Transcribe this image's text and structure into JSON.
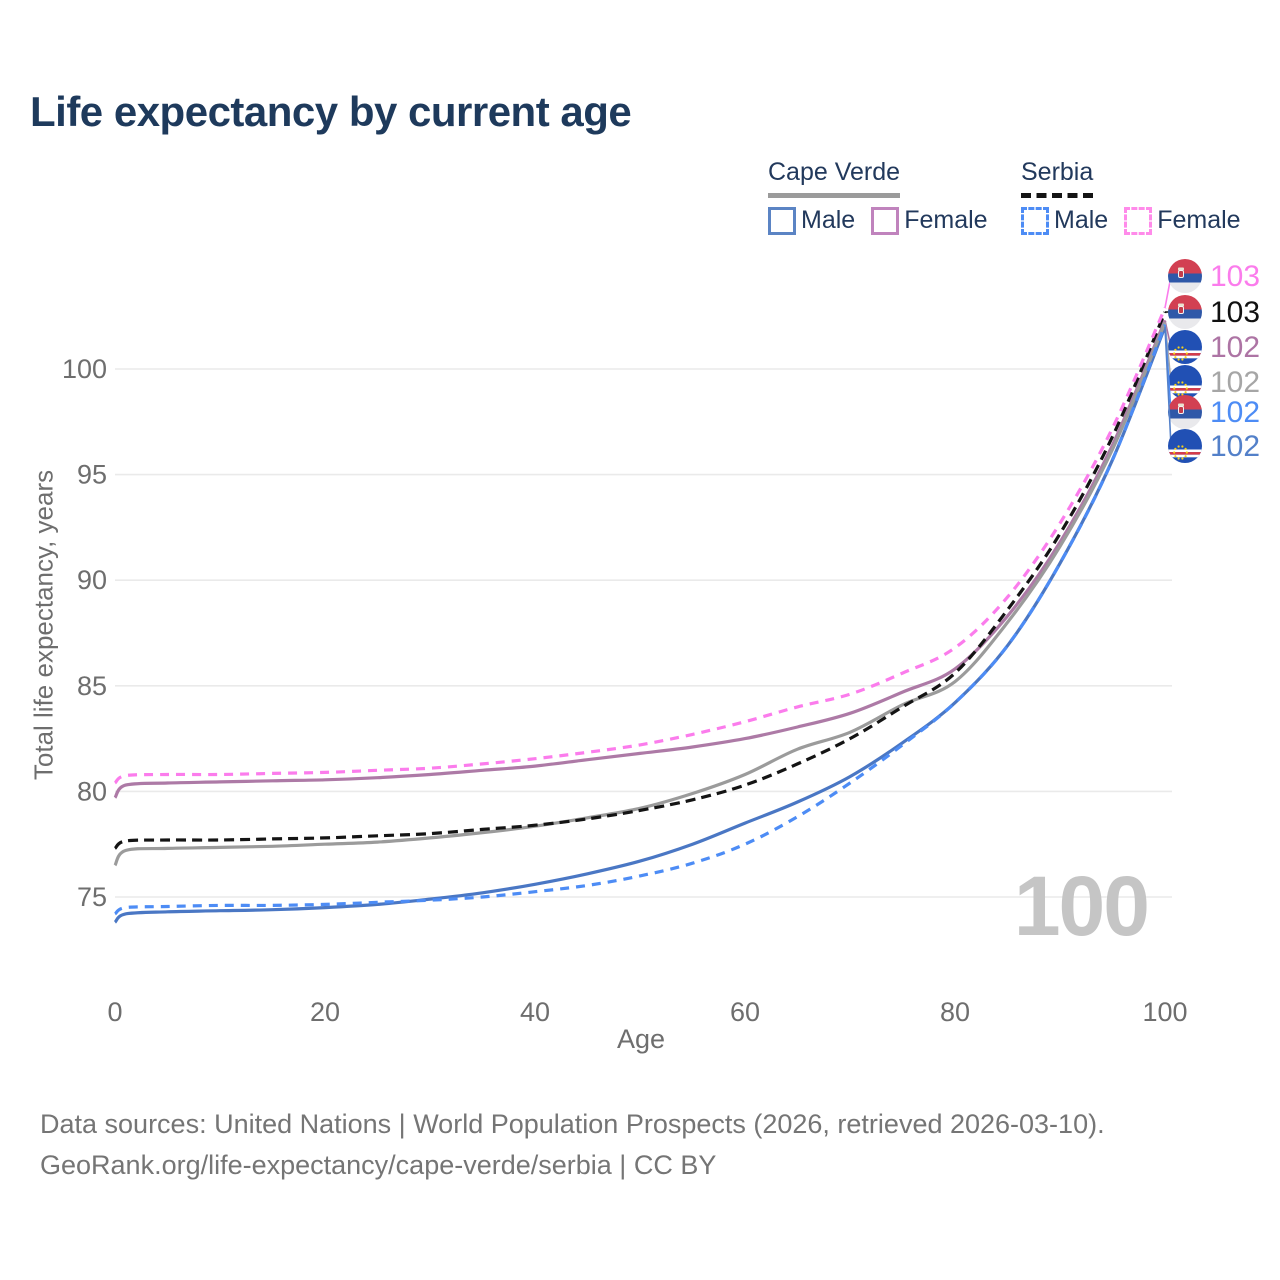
{
  "title": "Life expectancy by current age",
  "legend": {
    "groups": [
      {
        "label": "Cape Verde",
        "line_style": "solid",
        "items": [
          {
            "label": "Male",
            "color": "#5b84c4"
          },
          {
            "label": "Female",
            "color": "#c083bd"
          }
        ]
      },
      {
        "label": "Serbia",
        "line_style": "dashed",
        "items": [
          {
            "label": "Male",
            "color": "#4d8cf5"
          },
          {
            "label": "Female",
            "color": "#ff8bea"
          }
        ]
      }
    ]
  },
  "watermark_age_counter": "100",
  "footer": {
    "line1": "Data sources: United Nations | World Population Prospects (2026, retrieved 2026-03-10).",
    "line2": "GeoRank.org/life-expectancy/cape-verde/serbia | CC BY"
  },
  "chart_data": {
    "type": "line",
    "title": "Life expectancy by current age",
    "xlabel": "Age",
    "ylabel": "Total life expectancy, years",
    "xlim": [
      0,
      100
    ],
    "ylim": [
      73,
      103.5
    ],
    "x_ticks": [
      0,
      20,
      40,
      60,
      80,
      100
    ],
    "y_ticks": [
      75,
      80,
      85,
      90,
      95,
      100
    ],
    "grid": "horizontal",
    "legend_position": "top-right",
    "ages": [
      0,
      1,
      5,
      10,
      15,
      20,
      25,
      30,
      35,
      40,
      45,
      50,
      55,
      60,
      65,
      70,
      75,
      80,
      85,
      90,
      95,
      100
    ],
    "series": [
      {
        "name": "Cape Verde Male",
        "country": "cape-verde",
        "sex": "male",
        "style": "solid",
        "color": "#4a77c4",
        "values": [
          73.8,
          74.2,
          74.3,
          74.35,
          74.4,
          74.5,
          74.65,
          74.9,
          75.2,
          75.6,
          76.1,
          76.7,
          77.5,
          78.5,
          79.5,
          80.7,
          82.3,
          84.2,
          86.9,
          90.8,
          95.7,
          102.0
        ]
      },
      {
        "name": "Cape Verde Female",
        "country": "cape-verde",
        "sex": "female",
        "style": "solid",
        "color": "#ad7aa6",
        "values": [
          79.7,
          80.3,
          80.4,
          80.45,
          80.5,
          80.55,
          80.65,
          80.8,
          81.0,
          81.2,
          81.5,
          81.8,
          82.1,
          82.5,
          83.05,
          83.7,
          84.7,
          85.8,
          88.3,
          91.8,
          96.4,
          102.3
        ]
      },
      {
        "name": "Cape Verde Total",
        "country": "cape-verde",
        "sex": "total",
        "style": "solid",
        "color": "#9b9b9b",
        "values": [
          76.5,
          77.2,
          77.3,
          77.35,
          77.4,
          77.5,
          77.6,
          77.8,
          78.05,
          78.35,
          78.75,
          79.2,
          79.9,
          80.8,
          82.0,
          82.8,
          84.1,
          85.2,
          88.0,
          91.6,
          96.2,
          102.2
        ]
      },
      {
        "name": "Serbia Total",
        "country": "serbia",
        "sex": "total",
        "style": "dashed",
        "color": "#141414",
        "values": [
          77.3,
          77.65,
          77.7,
          77.7,
          77.75,
          77.8,
          77.9,
          78.0,
          78.2,
          78.4,
          78.7,
          79.1,
          79.6,
          80.3,
          81.3,
          82.5,
          84.0,
          85.6,
          88.6,
          92.2,
          96.8,
          102.7
        ]
      },
      {
        "name": "Serbia Male",
        "country": "serbia",
        "sex": "male",
        "style": "dashed",
        "color": "#4d8cf5",
        "values": [
          74.2,
          74.5,
          74.55,
          74.6,
          74.6,
          74.65,
          74.75,
          74.85,
          75.0,
          75.25,
          75.55,
          76.0,
          76.6,
          77.5,
          78.8,
          80.4,
          82.2,
          84.2,
          86.9,
          90.8,
          95.7,
          102.1
        ]
      },
      {
        "name": "Serbia Female",
        "country": "serbia",
        "sex": "female",
        "style": "dashed",
        "color": "#fb7cec",
        "values": [
          80.4,
          80.75,
          80.8,
          80.8,
          80.85,
          80.9,
          81.0,
          81.1,
          81.3,
          81.55,
          81.85,
          82.2,
          82.7,
          83.3,
          84.0,
          84.6,
          85.6,
          86.8,
          89.2,
          92.7,
          97.2,
          102.9
        ]
      }
    ],
    "end_labels": [
      {
        "value": "103",
        "flag": "serbia",
        "series": "Serbia Female",
        "color": "#fb7cec"
      },
      {
        "value": "103",
        "flag": "serbia",
        "series": "Serbia Total",
        "color": "#111111"
      },
      {
        "value": "102",
        "flag": "cape-verde",
        "series": "Cape Verde Female",
        "color": "#ad74a4"
      },
      {
        "value": "102",
        "flag": "cape-verde",
        "series": "Cape Verde Total",
        "color": "#a6a6a6"
      },
      {
        "value": "102",
        "flag": "serbia",
        "series": "Serbia Male",
        "color": "#4d8cf5"
      },
      {
        "value": "102",
        "flag": "cape-verde",
        "series": "Cape Verde Male",
        "color": "#5380c9"
      }
    ]
  }
}
